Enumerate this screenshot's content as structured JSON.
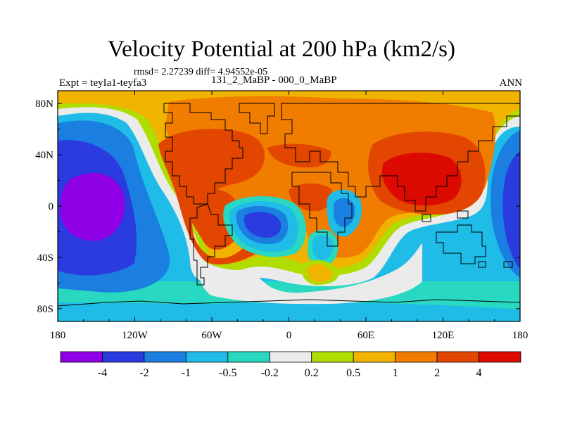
{
  "chart_data": {
    "type": "heatmap",
    "title": "Velocity Potential at 200 hPa (km2/s)",
    "subtitle": "rmsd= 2.27239 diff= 4.94552e-05",
    "left_label": "Expt = teyIa1-teyfa3",
    "center_label": "131_2_MaBP - 000_0_MaBP",
    "right_label": "ANN",
    "x_ticks": [
      "180",
      "120W",
      "60W",
      "0",
      "60E",
      "120E",
      "180"
    ],
    "x_tick_values": [
      -180,
      -120,
      -60,
      0,
      60,
      120,
      180
    ],
    "y_ticks": [
      "80N",
      "40N",
      "0",
      "40S",
      "80S"
    ],
    "y_tick_values": [
      80,
      40,
      0,
      -40,
      -80
    ],
    "xlim": [
      -180,
      180
    ],
    "ylim": [
      -90,
      90
    ],
    "colorbar": {
      "levels": [
        "-4",
        "-2",
        "-1",
        "-0.5",
        "-0.2",
        "0.2",
        "0.5",
        "1",
        "2",
        "4"
      ],
      "colors": [
        "#8f00e6",
        "#2a3be0",
        "#1a7fe0",
        "#20bce8",
        "#28d8c0",
        "#ebebeb",
        "#b0dc00",
        "#f0b400",
        "#f07d00",
        "#e24600",
        "#dc0a00"
      ]
    },
    "field_regions": [
      {
        "name": "NH extratropics",
        "value_class": "1 to 2",
        "lon_range": [
          -140,
          180
        ],
        "lat_range": [
          40,
          90
        ]
      },
      {
        "name": "Asia maximum",
        "value_class": ">4",
        "lon_range": [
          65,
          145
        ],
        "lat_range": [
          5,
          40
        ]
      },
      {
        "name": "South America max",
        "value_class": "2 to 4",
        "lon_range": [
          -95,
          -35
        ],
        "lat_range": [
          -40,
          30
        ]
      },
      {
        "name": "North America / Atlantic max",
        "value_class": "2 to 4",
        "lon_range": [
          -100,
          -10
        ],
        "lat_range": [
          20,
          60
        ]
      },
      {
        "name": "East Pacific minimum",
        "value_class": "< -4",
        "lon_range": [
          -175,
          -110
        ],
        "lat_range": [
          -30,
          20
        ]
      },
      {
        "name": "South Atlantic minimum",
        "value_class": "-2 to -4",
        "lon_range": [
          -45,
          5
        ],
        "lat_range": [
          -30,
          0
        ]
      },
      {
        "name": "Southern Ocean",
        "value_class": "-0.5 to -1",
        "lon_range": [
          -180,
          180
        ],
        "lat_range": [
          -90,
          -50
        ]
      }
    ]
  }
}
